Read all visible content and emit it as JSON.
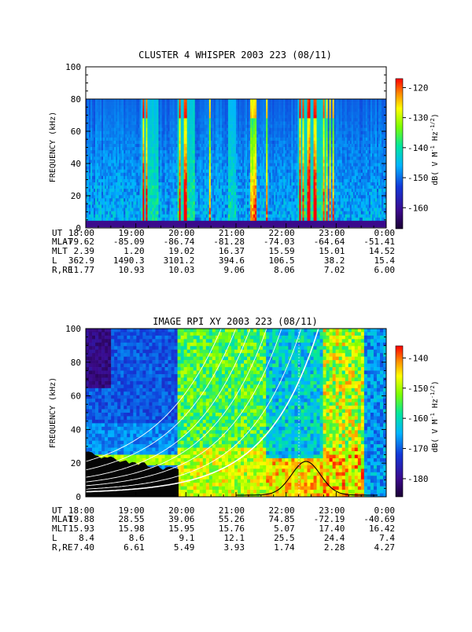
{
  "chart_data": [
    {
      "type": "heatmap",
      "title": "CLUSTER 4 WHISPER 2003 223 (08/11)",
      "ylabel": "FREQUENCY (kHz)",
      "ylim": [
        0,
        100
      ],
      "yticks": [
        "0",
        "20",
        "40",
        "60",
        "80",
        "100"
      ],
      "data_frequency_max": 80,
      "colorbar": {
        "label": "dB( V M^-1 Hz^-1/2)",
        "label_text": "dB( V M",
        "label_sup1": "-1",
        "label_mid": " Hz",
        "label_sup2": "-1/2",
        "label_end": ")",
        "range": [
          -167,
          -117
        ],
        "ticks": [
          "-120",
          "-130",
          "-140",
          "-150",
          "-160"
        ]
      },
      "axis_rows": [
        {
          "name": "UT",
          "values": [
            "18:00",
            "19:00",
            "20:00",
            "21:00",
            "22:00",
            "23:00",
            "0:00"
          ]
        },
        {
          "name": "MLAT",
          "values": [
            "-79.62",
            "-85.09",
            "-86.74",
            "-81.28",
            "-74.03",
            "-64.64",
            "-51.41"
          ]
        },
        {
          "name": "MLT",
          "values": [
            "2.39",
            "1.20",
            "19.02",
            "16.37",
            "15.59",
            "15.01",
            "14.52"
          ]
        },
        {
          "name": "L",
          "values": [
            "362.9",
            "1490.3",
            "3101.2",
            "394.6",
            "106.5",
            "38.2",
            "15.4"
          ]
        },
        {
          "name": "R,RE",
          "values": [
            "11.77",
            "10.93",
            "10.03",
            "9.06",
            "8.06",
            "7.02",
            "6.00"
          ]
        }
      ]
    },
    {
      "type": "heatmap",
      "title": "IMAGE RPI XY 2003 223 (08/11)",
      "ylabel": "FREQUENCY (kHz)",
      "ylim": [
        0,
        100
      ],
      "yticks": [
        "0",
        "20",
        "40",
        "60",
        "80",
        "100"
      ],
      "colorbar": {
        "label": "dB( V M^-1 Hz^-1/2)",
        "label_text": "dB( V M",
        "label_sup1": "-1",
        "label_mid": " Hz",
        "label_sup2": "-1/2",
        "label_end": ")",
        "range": [
          -186,
          -136
        ],
        "ticks": [
          "-140",
          "-150",
          "-160",
          "-170",
          "-180"
        ]
      },
      "axis_rows": [
        {
          "name": "UT",
          "values": [
            "18:00",
            "19:00",
            "20:00",
            "21:00",
            "22:00",
            "23:00",
            "0:00"
          ]
        },
        {
          "name": "MLAT",
          "values": [
            "19.88",
            "28.55",
            "39.06",
            "55.26",
            "74.85",
            "-72.19",
            "-40.69"
          ]
        },
        {
          "name": "MLT",
          "values": [
            "15.93",
            "15.98",
            "15.95",
            "15.76",
            "5.07",
            "17.40",
            "16.42"
          ]
        },
        {
          "name": "L",
          "values": [
            "8.4",
            "8.6",
            "9.1",
            "12.1",
            "25.5",
            "24.4",
            "7.4"
          ]
        },
        {
          "name": "R,RE",
          "values": [
            "7.40",
            "6.61",
            "5.49",
            "3.93",
            "1.74",
            "2.28",
            "4.27"
          ]
        }
      ]
    }
  ]
}
